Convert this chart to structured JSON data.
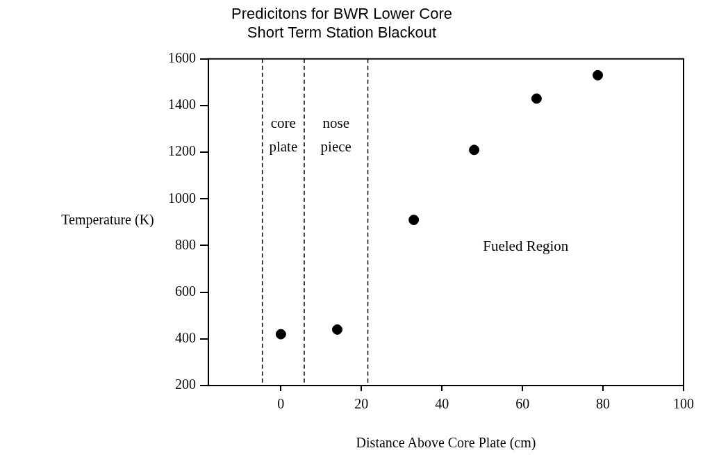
{
  "chart_data": {
    "type": "scatter",
    "title": "Predicitons for BWR Lower Core",
    "subtitle": "Short Term Station Blackout",
    "xlabel": "Distance Above Core Plate (cm)",
    "ylabel": "Temperature (K)",
    "x": [
      0,
      14,
      33,
      48,
      63.5,
      78.7
    ],
    "series": [
      {
        "color": "#000000",
        "values": [
          420,
          440,
          910,
          1210,
          1430,
          1530
        ]
      }
    ],
    "xlim": [
      -18,
      100
    ],
    "xticks": [
      0,
      20,
      40,
      60,
      80,
      100
    ],
    "ylim": [
      200,
      1600
    ],
    "yticks": [
      200,
      400,
      600,
      800,
      1000,
      1200,
      1400,
      1600
    ],
    "grid": false,
    "legend": false,
    "marker": "circle",
    "ref_lines": [
      {
        "axis": "x",
        "value": -4.6,
        "color": "#000000",
        "line_style": "dashed"
      },
      {
        "axis": "x",
        "value": 5.8,
        "color": "#000000",
        "line_style": "dashed"
      },
      {
        "axis": "x",
        "value": 21.6,
        "color": "#000000",
        "line_style": "dashed"
      }
    ],
    "annotations": [
      "core\nplate",
      "nose\npiece",
      "Fueled Region"
    ]
  }
}
